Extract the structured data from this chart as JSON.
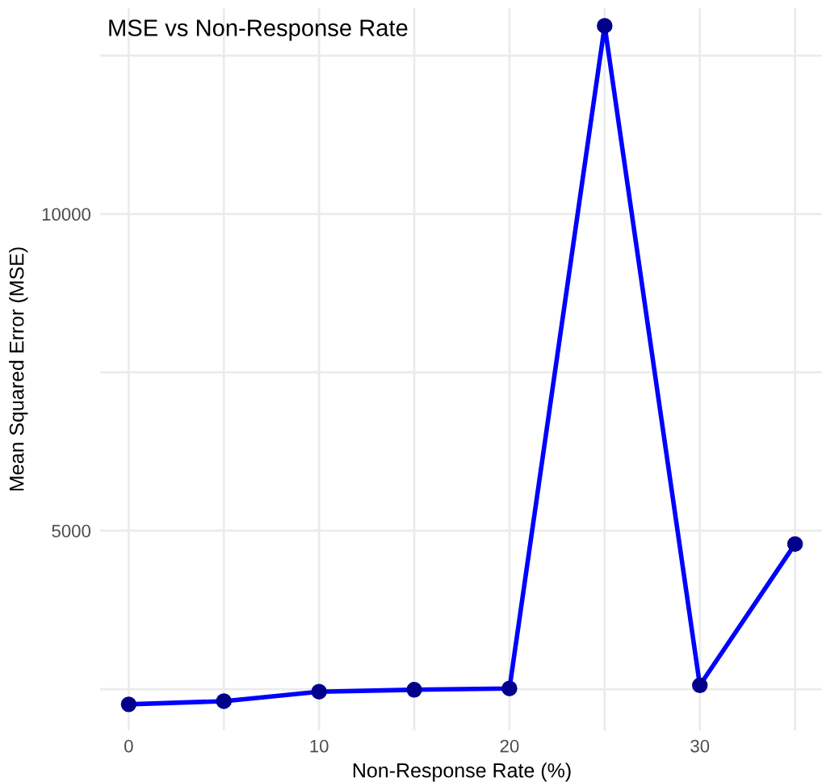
{
  "chart_data": {
    "type": "line",
    "title": "MSE vs Non-Response Rate",
    "xlabel": "Non-Response Rate (%)",
    "ylabel": "Mean Squared Error (MSE)",
    "x": [
      0,
      5,
      10,
      15,
      20,
      25,
      30,
      35
    ],
    "series": [
      {
        "color": "#0000ff",
        "values": [
          2260,
          2310,
          2460,
          2490,
          2510,
          12970,
          2560,
          4790
        ]
      }
    ],
    "xlim": [
      -1.5,
      36.5
    ],
    "ylim": [
      1850,
      13250
    ],
    "xticks": [
      0,
      {
        "value": 5,
        "label": null
      },
      10,
      {
        "value": 15,
        "label": null
      },
      20,
      {
        "value": 25,
        "label": null
      },
      30,
      {
        "value": 35,
        "label": null
      }
    ],
    "yticks": [
      {
        "value": 2500,
        "label": null
      },
      5000,
      {
        "value": 7500,
        "label": null
      },
      10000,
      {
        "value": 12500,
        "label": null
      }
    ],
    "grid": true,
    "marker": "circle",
    "line_style": "solid",
    "legend": false
  }
}
